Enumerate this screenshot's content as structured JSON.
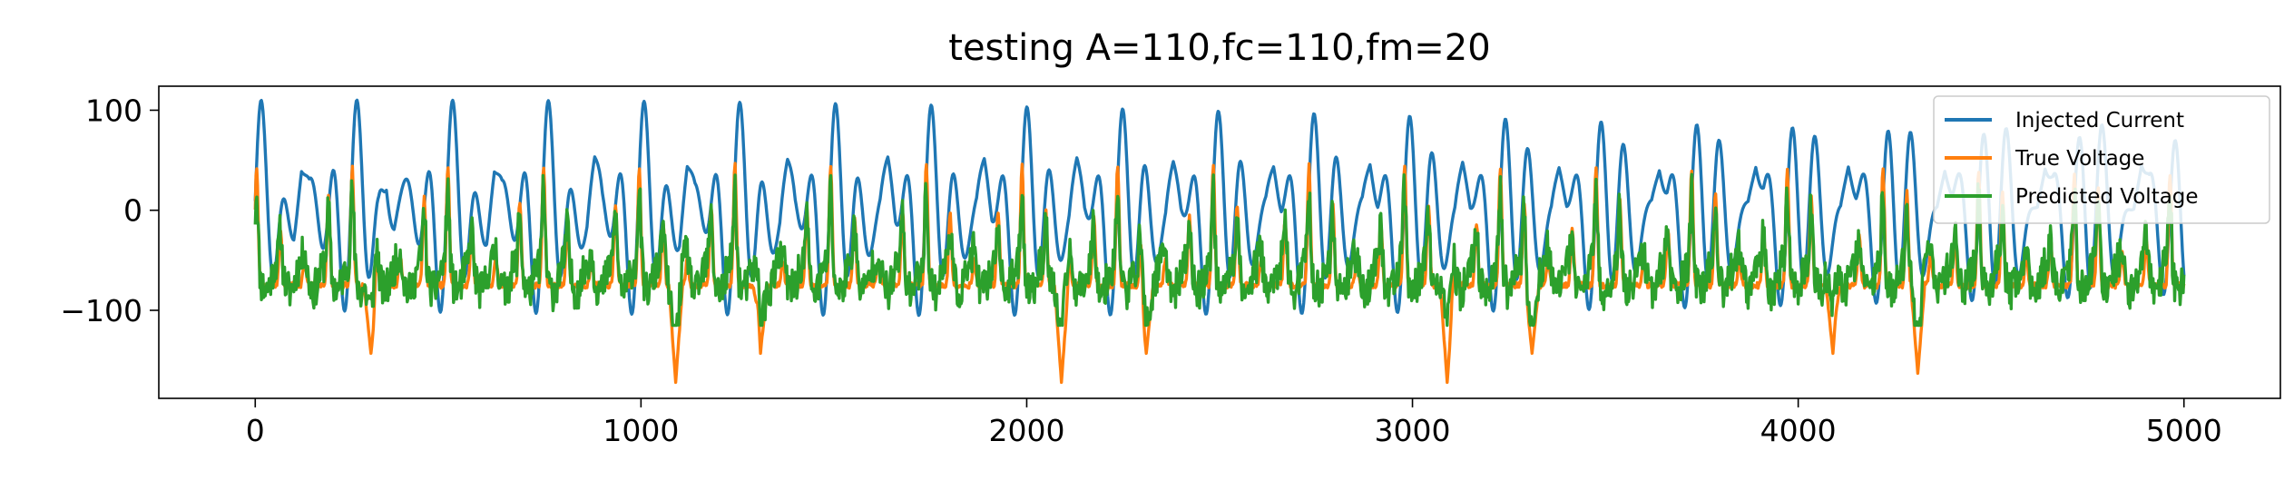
{
  "chart_data": {
    "type": "line",
    "title": "testing A=110,fc=110,fm=20",
    "xlabel": "",
    "ylabel": "",
    "xlim": [
      -250,
      5250
    ],
    "ylim": [
      -188,
      124
    ],
    "xticks": [
      0,
      1000,
      2000,
      3000,
      4000,
      5000
    ],
    "xtick_labels": [
      "0",
      "1000",
      "2000",
      "3000",
      "4000",
      "5000"
    ],
    "yticks": [
      100,
      0,
      -100
    ],
    "ytick_labels": [
      "100",
      "0",
      "−100"
    ],
    "grid": false,
    "legend_position": "upper right",
    "x_start": 0,
    "x_end": 5000,
    "series": [
      {
        "name": "Injected Current",
        "color": "#1f77b4",
        "y_min": -105,
        "y_max": 110,
        "peaks_x": [
          120,
          340,
          620,
          880,
          1120,
          1380,
          1640,
          1890,
          2130,
          2380,
          2640,
          2890,
          3130,
          3380,
          3640,
          3890,
          4130,
          4380,
          4640,
          4890
        ],
        "peak_values": [
          110,
          100,
          102,
          110,
          110,
          102,
          110,
          110,
          110,
          102,
          100,
          110,
          110,
          98,
          100,
          110,
          110,
          100,
          102,
          110
        ]
      },
      {
        "name": "True Voltage",
        "color": "#ff7f0e",
        "y_min": -172,
        "y_max": 50,
        "troughs_x": [
          300,
          1090,
          1310,
          2090,
          2310,
          3090,
          3310,
          4090,
          4310
        ],
        "trough_values": [
          -143,
          -172,
          -143,
          -172,
          -143,
          -172,
          -143,
          -143,
          -163
        ]
      },
      {
        "name": "Predicted Voltage",
        "color": "#2ca02c",
        "y_min": -115,
        "y_max": 88
      }
    ]
  }
}
